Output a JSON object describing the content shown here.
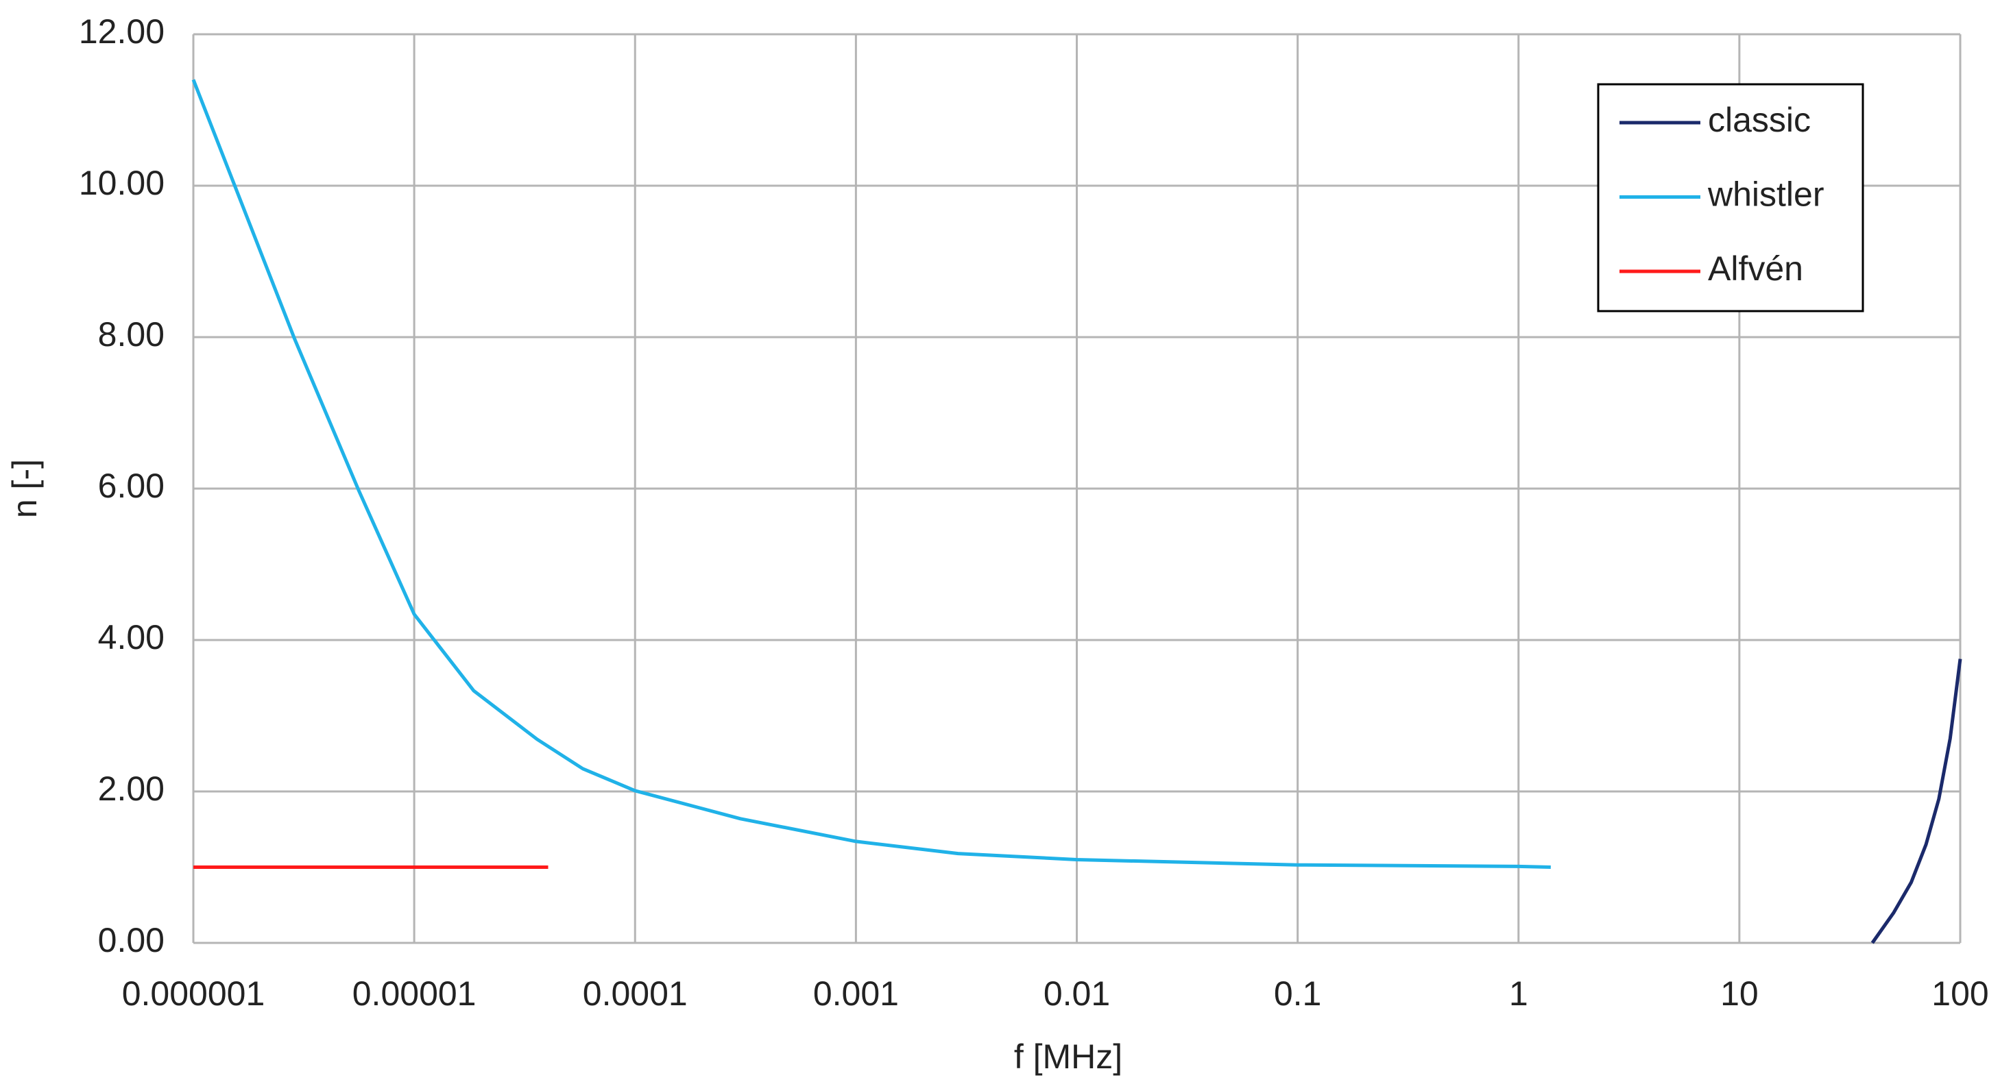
{
  "chart_data": {
    "type": "line",
    "xscale": "log",
    "grid": true,
    "legend": "upper right",
    "x_label": "f [MHz]",
    "y_label": "n [-]",
    "xlim": [
      1e-06,
      100
    ],
    "xticks": [
      1e-06,
      1e-05,
      0.0001,
      0.001,
      0.01,
      0.1,
      1,
      10,
      100
    ],
    "ylim": [
      0,
      12
    ],
    "yticks": [
      {
        "value": 0,
        "label": "0.00"
      },
      {
        "value": 2,
        "label": "2.00"
      },
      {
        "value": 4,
        "label": "4.00"
      },
      {
        "value": 6,
        "label": "6.00"
      },
      {
        "value": 8,
        "label": "8.00"
      },
      {
        "value": 10,
        "label": "10.00"
      },
      {
        "value": 12,
        "label": "12.00"
      }
    ],
    "series": [
      {
        "name": "classic",
        "color": "#1b2a6b",
        "x": [
          40,
          50,
          60,
          70,
          80,
          90,
          100
        ],
        "values": [
          0,
          0.4,
          0.8,
          1.3,
          1.9,
          2.7,
          3.75
        ]
      },
      {
        "name": "whistler",
        "color": "#20b2e8",
        "x": [
          1e-06,
          2.87e-06,
          5.6e-06,
          1e-05,
          1.86e-05,
          3.6e-05,
          5.8e-05,
          0.0001,
          0.0003,
          0.001,
          0.0029,
          0.01,
          0.1,
          1,
          1.4
        ],
        "values": [
          11.4,
          7.98,
          5.98,
          4.34,
          3.33,
          2.69,
          2.3,
          2.01,
          1.64,
          1.34,
          1.18,
          1.1,
          1.03,
          1.01,
          1.0
        ]
      },
      {
        "name": "Alfvén",
        "color": "#ff1a1a",
        "x": [
          1e-06,
          4.04e-05
        ],
        "values": [
          1.0,
          1.0
        ]
      }
    ]
  }
}
